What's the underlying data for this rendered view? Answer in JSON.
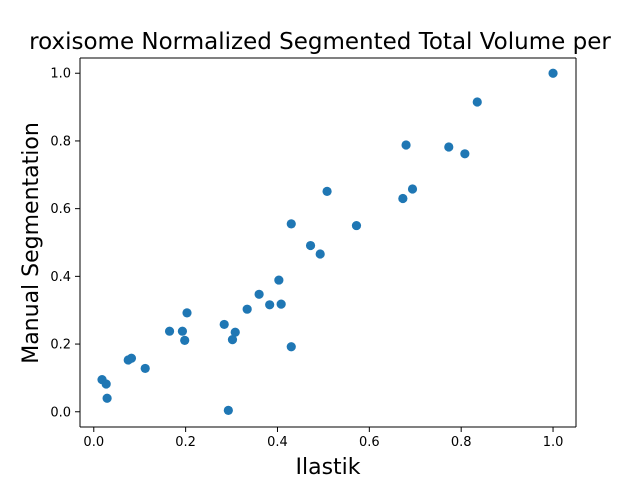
{
  "chart_data": {
    "type": "scatter",
    "title": "Peroxisome Normalized Segmented Total Volume per Cell",
    "title_visible": "roxisome Normalized Segmented Total Volume per",
    "xlabel": "Ilastik",
    "ylabel": "Manual Segmentation",
    "xlim": [
      -0.03,
      1.05
    ],
    "ylim": [
      -0.045,
      1.045
    ],
    "xticks": [
      0.0,
      0.2,
      0.4,
      0.6,
      0.8,
      1.0
    ],
    "xtick_labels": [
      "0.0",
      "0.2",
      "0.4",
      "0.6",
      "0.8",
      "1.0"
    ],
    "yticks": [
      0.0,
      0.2,
      0.4,
      0.6,
      0.8,
      1.0
    ],
    "ytick_labels": [
      "0.0",
      "0.2",
      "0.4",
      "0.6",
      "0.8",
      "1.0"
    ],
    "grid": false,
    "marker_color": "#1f77b4",
    "points": [
      {
        "x": 0.018,
        "y": 0.095
      },
      {
        "x": 0.027,
        "y": 0.082
      },
      {
        "x": 0.029,
        "y": 0.04
      },
      {
        "x": 0.075,
        "y": 0.153
      },
      {
        "x": 0.082,
        "y": 0.158
      },
      {
        "x": 0.112,
        "y": 0.128
      },
      {
        "x": 0.165,
        "y": 0.238
      },
      {
        "x": 0.193,
        "y": 0.238
      },
      {
        "x": 0.198,
        "y": 0.211
      },
      {
        "x": 0.203,
        "y": 0.292
      },
      {
        "x": 0.284,
        "y": 0.258
      },
      {
        "x": 0.293,
        "y": 0.004
      },
      {
        "x": 0.302,
        "y": 0.213
      },
      {
        "x": 0.308,
        "y": 0.235
      },
      {
        "x": 0.334,
        "y": 0.303
      },
      {
        "x": 0.36,
        "y": 0.347
      },
      {
        "x": 0.383,
        "y": 0.316
      },
      {
        "x": 0.403,
        "y": 0.389
      },
      {
        "x": 0.408,
        "y": 0.318
      },
      {
        "x": 0.43,
        "y": 0.555
      },
      {
        "x": 0.43,
        "y": 0.192
      },
      {
        "x": 0.472,
        "y": 0.491
      },
      {
        "x": 0.493,
        "y": 0.466
      },
      {
        "x": 0.508,
        "y": 0.651
      },
      {
        "x": 0.572,
        "y": 0.55
      },
      {
        "x": 0.673,
        "y": 0.63
      },
      {
        "x": 0.68,
        "y": 0.788
      },
      {
        "x": 0.694,
        "y": 0.658
      },
      {
        "x": 0.773,
        "y": 0.782
      },
      {
        "x": 0.808,
        "y": 0.762
      },
      {
        "x": 0.835,
        "y": 0.915
      },
      {
        "x": 1.0,
        "y": 1.0
      }
    ]
  }
}
